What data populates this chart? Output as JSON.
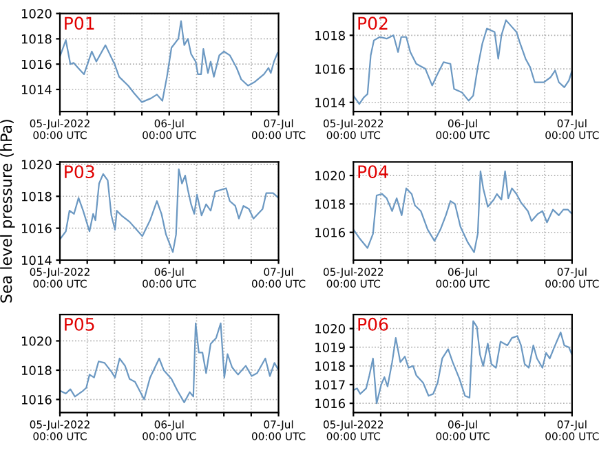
{
  "chart_data": [
    {
      "type": "line",
      "title": "P01",
      "color": "#6b98c2",
      "grid": true,
      "xlim": [
        "2022-07-05T00:00",
        "2022-07-07T00:00"
      ],
      "ylim": [
        1012.25,
        1020
      ],
      "yticks": [
        1014,
        1016,
        1018,
        1020
      ],
      "xticks": [
        {
          "value": "2022-07-05T00:00",
          "label": "05-Jul-2022\n00:00 UTC"
        },
        {
          "value": "2022-07-05T06:00",
          "label": null
        },
        {
          "value": "2022-07-05T12:00",
          "label": null
        },
        {
          "value": "2022-07-05T18:00",
          "label": null
        },
        {
          "value": "2022-07-06T00:00",
          "label": "06-Jul\n00:00 UTC"
        },
        {
          "value": "2022-07-06T06:00",
          "label": null
        },
        {
          "value": "2022-07-06T12:00",
          "label": null
        },
        {
          "value": "2022-07-06T18:00",
          "label": null
        },
        {
          "value": "2022-07-07T00:00",
          "label": "07-Jul\n00:00 UTC"
        }
      ],
      "x": [
        "2022-07-05T00:00",
        "2022-07-05T01:18",
        "2022-07-05T02:18",
        "2022-07-05T03:00",
        "2022-07-05T04:00",
        "2022-07-05T05:18",
        "2022-07-05T07:00",
        "2022-07-05T08:00",
        "2022-07-05T10:00",
        "2022-07-05T12:00",
        "2022-07-05T13:00",
        "2022-07-05T15:00",
        "2022-07-05T16:18",
        "2022-07-05T18:00",
        "2022-07-05T20:00",
        "2022-07-05T21:18",
        "2022-07-05T22:30",
        "2022-07-05T23:30",
        "2022-07-06T00:30",
        "2022-07-06T02:00",
        "2022-07-06T02:36",
        "2022-07-06T03:18",
        "2022-07-06T04:06",
        "2022-07-06T04:48",
        "2022-07-06T05:48",
        "2022-07-06T06:18",
        "2022-07-06T07:00",
        "2022-07-06T07:30",
        "2022-07-06T08:30",
        "2022-07-06T09:06",
        "2022-07-06T09:48",
        "2022-07-06T11:00",
        "2022-07-06T12:00",
        "2022-07-06T13:18",
        "2022-07-06T14:48",
        "2022-07-06T15:48",
        "2022-07-06T17:18",
        "2022-07-06T18:48",
        "2022-07-06T20:48",
        "2022-07-06T21:48",
        "2022-07-06T22:18",
        "2022-07-06T23:00",
        "2022-07-06T23:48"
      ],
      "values": [
        1016.6,
        1017.9,
        1016.0,
        1016.1,
        1015.7,
        1015.2,
        1017.0,
        1016.2,
        1017.5,
        1016.0,
        1015.0,
        1014.3,
        1013.7,
        1013.0,
        1013.3,
        1013.6,
        1013.1,
        1015.0,
        1017.3,
        1018.0,
        1019.4,
        1017.5,
        1018.0,
        1016.8,
        1016.2,
        1015.2,
        1015.2,
        1017.2,
        1015.3,
        1016.2,
        1015.0,
        1016.7,
        1017.0,
        1016.7,
        1015.7,
        1014.8,
        1014.3,
        1014.6,
        1015.2,
        1015.7,
        1015.3,
        1016.2,
        1016.9
      ]
    },
    {
      "type": "line",
      "title": "P02",
      "color": "#6b98c2",
      "grid": true,
      "xlim": [
        "2022-07-05T00:00",
        "2022-07-07T00:00"
      ],
      "ylim": [
        1013.45,
        1019.3
      ],
      "yticks": [
        1014,
        1016,
        1018
      ],
      "xticks": [
        {
          "value": "2022-07-05T00:00",
          "label": "05-Jul-2022\n00:00 UTC"
        },
        {
          "value": "2022-07-05T06:00",
          "label": null
        },
        {
          "value": "2022-07-05T12:00",
          "label": null
        },
        {
          "value": "2022-07-05T18:00",
          "label": null
        },
        {
          "value": "2022-07-06T00:00",
          "label": "06-Jul\n00:00 UTC"
        },
        {
          "value": "2022-07-06T06:00",
          "label": null
        },
        {
          "value": "2022-07-06T12:00",
          "label": null
        },
        {
          "value": "2022-07-06T18:00",
          "label": null
        },
        {
          "value": "2022-07-07T00:00",
          "label": "07-Jul\n00:00 UTC"
        }
      ],
      "x": [
        "2022-07-05T00:00",
        "2022-07-05T01:18",
        "2022-07-05T02:18",
        "2022-07-05T03:06",
        "2022-07-05T03:48",
        "2022-07-05T04:30",
        "2022-07-05T05:48",
        "2022-07-05T07:18",
        "2022-07-05T08:48",
        "2022-07-05T09:48",
        "2022-07-05T10:30",
        "2022-07-05T11:36",
        "2022-07-05T12:30",
        "2022-07-05T13:48",
        "2022-07-05T15:48",
        "2022-07-05T17:18",
        "2022-07-05T18:18",
        "2022-07-05T19:48",
        "2022-07-05T21:18",
        "2022-07-05T22:06",
        "2022-07-05T23:48",
        "2022-07-06T01:18",
        "2022-07-06T02:18",
        "2022-07-06T03:18",
        "2022-07-06T04:18",
        "2022-07-06T05:18",
        "2022-07-06T07:00",
        "2022-07-06T07:48",
        "2022-07-06T08:30",
        "2022-07-06T09:30",
        "2022-07-06T10:48",
        "2022-07-06T11:48",
        "2022-07-06T12:30",
        "2022-07-06T13:48",
        "2022-07-06T14:48",
        "2022-07-06T15:48",
        "2022-07-06T17:48",
        "2022-07-06T19:18",
        "2022-07-06T20:18",
        "2022-07-06T21:06",
        "2022-07-06T22:18",
        "2022-07-06T23:18",
        "2022-07-07T00:00"
      ],
      "values": [
        1014.4,
        1013.9,
        1014.3,
        1014.5,
        1016.8,
        1017.7,
        1017.9,
        1017.8,
        1018.0,
        1017.0,
        1017.9,
        1017.9,
        1017.0,
        1016.3,
        1016.0,
        1015.0,
        1015.6,
        1016.4,
        1016.3,
        1014.8,
        1014.6,
        1014.1,
        1014.4,
        1016.1,
        1017.5,
        1018.4,
        1018.2,
        1016.6,
        1018.0,
        1018.9,
        1018.5,
        1018.2,
        1017.6,
        1016.6,
        1016.1,
        1015.2,
        1015.2,
        1015.5,
        1015.9,
        1015.2,
        1014.9,
        1015.3,
        1015.9
      ]
    },
    {
      "type": "line",
      "title": "P03",
      "ylabel": "Sea level pressure (hPa)",
      "color": "#6b98c2",
      "grid": true,
      "xlim": [
        "2022-07-05T00:00",
        "2022-07-07T00:00"
      ],
      "ylim": [
        1014,
        1020.15
      ],
      "yticks": [
        1014,
        1016,
        1018,
        1020
      ],
      "xticks": [
        {
          "value": "2022-07-05T00:00",
          "label": "05-Jul-2022\n00:00 UTC"
        },
        {
          "value": "2022-07-05T06:00",
          "label": null
        },
        {
          "value": "2022-07-05T12:00",
          "label": null
        },
        {
          "value": "2022-07-05T18:00",
          "label": null
        },
        {
          "value": "2022-07-06T00:00",
          "label": "06-Jul\n00:00 UTC"
        },
        {
          "value": "2022-07-06T06:00",
          "label": null
        },
        {
          "value": "2022-07-06T12:00",
          "label": null
        },
        {
          "value": "2022-07-06T18:00",
          "label": null
        },
        {
          "value": "2022-07-07T00:00",
          "label": "07-Jul\n00:00 UTC"
        }
      ],
      "x": [
        "2022-07-05T00:00",
        "2022-07-05T01:18",
        "2022-07-05T02:06",
        "2022-07-05T03:06",
        "2022-07-05T04:06",
        "2022-07-05T05:06",
        "2022-07-05T06:30",
        "2022-07-05T07:18",
        "2022-07-05T07:48",
        "2022-07-05T08:36",
        "2022-07-05T09:30",
        "2022-07-05T10:30",
        "2022-07-05T11:18",
        "2022-07-05T12:06",
        "2022-07-05T12:30",
        "2022-07-05T13:30",
        "2022-07-05T15:18",
        "2022-07-05T18:06",
        "2022-07-05T19:48",
        "2022-07-05T21:18",
        "2022-07-05T22:18",
        "2022-07-05T23:18",
        "2022-07-06T00:48",
        "2022-07-06T01:30",
        "2022-07-06T02:06",
        "2022-07-06T02:48",
        "2022-07-06T03:30",
        "2022-07-06T04:06",
        "2022-07-06T04:48",
        "2022-07-06T05:30",
        "2022-07-06T06:06",
        "2022-07-06T07:06",
        "2022-07-06T08:06",
        "2022-07-06T09:06",
        "2022-07-06T10:06",
        "2022-07-06T11:18",
        "2022-07-06T12:30",
        "2022-07-06T13:18",
        "2022-07-06T14:30",
        "2022-07-06T15:18",
        "2022-07-06T16:18",
        "2022-07-06T17:30",
        "2022-07-06T18:30",
        "2022-07-06T19:30",
        "2022-07-06T20:30",
        "2022-07-06T21:18",
        "2022-07-06T22:48",
        "2022-07-07T00:00"
      ],
      "values": [
        1015.3,
        1015.8,
        1017.1,
        1016.9,
        1017.9,
        1017.1,
        1015.8,
        1016.9,
        1016.5,
        1018.8,
        1019.4,
        1019.0,
        1016.8,
        1015.9,
        1017.1,
        1016.8,
        1016.4,
        1015.5,
        1016.5,
        1017.7,
        1016.9,
        1015.6,
        1014.5,
        1015.6,
        1019.7,
        1018.8,
        1019.3,
        1018.4,
        1017.5,
        1016.9,
        1018.1,
        1016.8,
        1017.5,
        1017.1,
        1018.3,
        1018.4,
        1018.5,
        1017.7,
        1017.4,
        1016.6,
        1017.4,
        1017.2,
        1016.6,
        1016.9,
        1017.2,
        1018.2,
        1018.2,
        1017.9
      ]
    },
    {
      "type": "line",
      "title": "P04",
      "color": "#6b98c2",
      "grid": true,
      "xlim": [
        "2022-07-05T00:00",
        "2022-07-07T00:00"
      ],
      "ylim": [
        1014.05,
        1020.95
      ],
      "yticks": [
        1016,
        1018,
        1020
      ],
      "xticks": [
        {
          "value": "2022-07-05T00:00",
          "label": "05-Jul-2022\n00:00 UTC"
        },
        {
          "value": "2022-07-05T06:00",
          "label": null
        },
        {
          "value": "2022-07-05T12:00",
          "label": null
        },
        {
          "value": "2022-07-05T18:00",
          "label": null
        },
        {
          "value": "2022-07-06T00:00",
          "label": "06-Jul\n00:00 UTC"
        },
        {
          "value": "2022-07-06T06:00",
          "label": null
        },
        {
          "value": "2022-07-06T12:00",
          "label": null
        },
        {
          "value": "2022-07-06T18:00",
          "label": null
        },
        {
          "value": "2022-07-07T00:00",
          "label": "07-Jul\n00:00 UTC"
        }
      ],
      "x": [
        "2022-07-05T00:00",
        "2022-07-05T01:18",
        "2022-07-05T03:06",
        "2022-07-05T04:18",
        "2022-07-05T05:06",
        "2022-07-05T06:18",
        "2022-07-05T07:18",
        "2022-07-05T08:30",
        "2022-07-05T09:30",
        "2022-07-05T10:36",
        "2022-07-05T11:36",
        "2022-07-05T12:48",
        "2022-07-05T13:30",
        "2022-07-05T14:48",
        "2022-07-05T16:18",
        "2022-07-05T17:48",
        "2022-07-05T19:06",
        "2022-07-05T20:18",
        "2022-07-05T21:18",
        "2022-07-05T22:18",
        "2022-07-05T23:30",
        "2022-07-06T01:06",
        "2022-07-06T02:30",
        "2022-07-06T03:18",
        "2022-07-06T03:54",
        "2022-07-06T04:30",
        "2022-07-06T05:30",
        "2022-07-06T06:48",
        "2022-07-06T07:30",
        "2022-07-06T08:30",
        "2022-07-06T09:18",
        "2022-07-06T10:00",
        "2022-07-06T10:48",
        "2022-07-06T11:48",
        "2022-07-06T12:48",
        "2022-07-06T14:18",
        "2022-07-06T15:06",
        "2022-07-06T16:30",
        "2022-07-06T17:30",
        "2022-07-06T18:30",
        "2022-07-06T19:48",
        "2022-07-06T21:06",
        "2022-07-06T22:06",
        "2022-07-06T23:06",
        "2022-07-07T00:00"
      ],
      "values": [
        1016.2,
        1015.6,
        1014.9,
        1015.9,
        1018.6,
        1018.7,
        1018.4,
        1017.5,
        1018.4,
        1017.2,
        1019.1,
        1018.7,
        1017.9,
        1017.5,
        1016.2,
        1015.4,
        1016.2,
        1017.2,
        1018.2,
        1018.0,
        1016.4,
        1015.3,
        1014.6,
        1015.9,
        1020.3,
        1019.1,
        1017.8,
        1018.3,
        1018.7,
        1018.3,
        1020.3,
        1018.4,
        1019.1,
        1018.7,
        1018.1,
        1017.5,
        1016.8,
        1017.3,
        1017.5,
        1016.7,
        1017.6,
        1017.2,
        1017.6,
        1017.6,
        1017.3
      ]
    },
    {
      "type": "line",
      "title": "P05",
      "color": "#6b98c2",
      "grid": true,
      "xlim": [
        "2022-07-05T00:00",
        "2022-07-07T00:00"
      ],
      "ylim": [
        1015.1,
        1021.8
      ],
      "yticks": [
        1016,
        1018,
        1020
      ],
      "xticks": [
        {
          "value": "2022-07-05T00:00",
          "label": "05-Jul-2022\n00:00 UTC"
        },
        {
          "value": "2022-07-05T06:00",
          "label": null
        },
        {
          "value": "2022-07-05T12:00",
          "label": null
        },
        {
          "value": "2022-07-05T18:00",
          "label": null
        },
        {
          "value": "2022-07-06T00:00",
          "label": "06-Jul\n00:00 UTC"
        },
        {
          "value": "2022-07-06T06:00",
          "label": null
        },
        {
          "value": "2022-07-06T12:00",
          "label": null
        },
        {
          "value": "2022-07-06T18:00",
          "label": null
        },
        {
          "value": "2022-07-07T00:00",
          "label": "07-Jul\n00:00 UTC"
        }
      ],
      "x": [
        "2022-07-05T00:00",
        "2022-07-05T01:18",
        "2022-07-05T02:18",
        "2022-07-05T03:18",
        "2022-07-05T05:06",
        "2022-07-05T05:48",
        "2022-07-05T06:30",
        "2022-07-05T07:30",
        "2022-07-05T08:30",
        "2022-07-05T09:48",
        "2022-07-05T11:18",
        "2022-07-05T12:06",
        "2022-07-05T13:06",
        "2022-07-05T14:18",
        "2022-07-05T15:18",
        "2022-07-05T16:30",
        "2022-07-05T18:30",
        "2022-07-05T19:48",
        "2022-07-05T21:48",
        "2022-07-05T22:48",
        "2022-07-06T00:30",
        "2022-07-06T01:48",
        "2022-07-06T03:18",
        "2022-07-06T04:30",
        "2022-07-06T05:18",
        "2022-07-06T05:48",
        "2022-07-06T06:30",
        "2022-07-06T07:18",
        "2022-07-06T08:06",
        "2022-07-06T09:06",
        "2022-07-06T10:18",
        "2022-07-06T11:18",
        "2022-07-06T12:06",
        "2022-07-06T12:48",
        "2022-07-06T13:48",
        "2022-07-06T15:06",
        "2022-07-06T16:48",
        "2022-07-06T18:06",
        "2022-07-06T19:18",
        "2022-07-06T21:06",
        "2022-07-06T22:06",
        "2022-07-06T23:06",
        "2022-07-07T00:00"
      ],
      "values": [
        1016.6,
        1016.4,
        1016.7,
        1016.2,
        1016.6,
        1016.8,
        1017.7,
        1017.5,
        1018.6,
        1018.5,
        1017.9,
        1017.5,
        1018.8,
        1018.3,
        1017.4,
        1017.2,
        1016.0,
        1017.5,
        1018.8,
        1018.0,
        1017.4,
        1016.6,
        1015.8,
        1016.5,
        1016.2,
        1021.2,
        1019.2,
        1019.2,
        1017.8,
        1019.8,
        1020.2,
        1021.2,
        1017.5,
        1019.1,
        1018.2,
        1017.7,
        1018.3,
        1017.6,
        1017.8,
        1018.8,
        1017.6,
        1018.5,
        1018.0
      ]
    },
    {
      "type": "line",
      "title": "P06",
      "color": "#6b98c2",
      "grid": true,
      "xlim": [
        "2022-07-05T00:00",
        "2022-07-07T00:00"
      ],
      "ylim": [
        1015.5,
        1020.75
      ],
      "yticks": [
        1016,
        1017,
        1018,
        1019,
        1020
      ],
      "xticks": [
        {
          "value": "2022-07-05T00:00",
          "label": "05-Jul-2022\n00:00 UTC"
        },
        {
          "value": "2022-07-05T06:00",
          "label": null
        },
        {
          "value": "2022-07-05T12:00",
          "label": null
        },
        {
          "value": "2022-07-05T18:00",
          "label": null
        },
        {
          "value": "2022-07-06T00:00",
          "label": "06-Jul\n00:00 UTC"
        },
        {
          "value": "2022-07-06T06:00",
          "label": null
        },
        {
          "value": "2022-07-06T12:00",
          "label": null
        },
        {
          "value": "2022-07-06T18:00",
          "label": null
        },
        {
          "value": "2022-07-07T00:00",
          "label": "07-Jul\n00:00 UTC"
        }
      ],
      "x": [
        "2022-07-05T00:00",
        "2022-07-05T00:48",
        "2022-07-05T01:30",
        "2022-07-05T02:48",
        "2022-07-05T03:30",
        "2022-07-05T04:18",
        "2022-07-05T05:06",
        "2022-07-05T06:06",
        "2022-07-05T06:48",
        "2022-07-05T07:30",
        "2022-07-05T08:30",
        "2022-07-05T09:18",
        "2022-07-05T10:18",
        "2022-07-05T11:18",
        "2022-07-05T12:06",
        "2022-07-05T13:06",
        "2022-07-05T13:48",
        "2022-07-05T15:18",
        "2022-07-05T16:30",
        "2022-07-05T17:30",
        "2022-07-05T18:30",
        "2022-07-05T19:30",
        "2022-07-05T20:48",
        "2022-07-05T21:48",
        "2022-07-05T23:18",
        "2022-07-06T00:30",
        "2022-07-06T01:30",
        "2022-07-06T02:18",
        "2022-07-06T03:06",
        "2022-07-06T03:48",
        "2022-07-06T04:30",
        "2022-07-06T05:30",
        "2022-07-06T06:18",
        "2022-07-06T07:18",
        "2022-07-06T08:18",
        "2022-07-06T09:48",
        "2022-07-06T10:48",
        "2022-07-06T12:00",
        "2022-07-06T12:48",
        "2022-07-06T13:36",
        "2022-07-06T14:30",
        "2022-07-06T15:30",
        "2022-07-06T16:18",
        "2022-07-06T17:30",
        "2022-07-06T18:18",
        "2022-07-06T19:06",
        "2022-07-06T20:06",
        "2022-07-06T21:30",
        "2022-07-06T22:18",
        "2022-07-06T23:18",
        "2022-07-07T00:00"
      ],
      "values": [
        1016.7,
        1016.8,
        1016.5,
        1016.8,
        1017.5,
        1018.4,
        1016.0,
        1017.0,
        1017.4,
        1016.9,
        1018.2,
        1019.5,
        1018.2,
        1018.5,
        1017.9,
        1018.0,
        1017.5,
        1017.1,
        1016.4,
        1016.5,
        1017.1,
        1018.4,
        1018.9,
        1018.2,
        1017.3,
        1016.4,
        1016.3,
        1020.4,
        1020.1,
        1018.6,
        1018.0,
        1019.2,
        1018.1,
        1017.9,
        1019.3,
        1019.1,
        1019.5,
        1019.6,
        1019.1,
        1018.1,
        1017.9,
        1019.1,
        1018.4,
        1017.9,
        1018.7,
        1018.4,
        1019.0,
        1019.8,
        1019.1,
        1019.0,
        1018.6
      ]
    }
  ]
}
